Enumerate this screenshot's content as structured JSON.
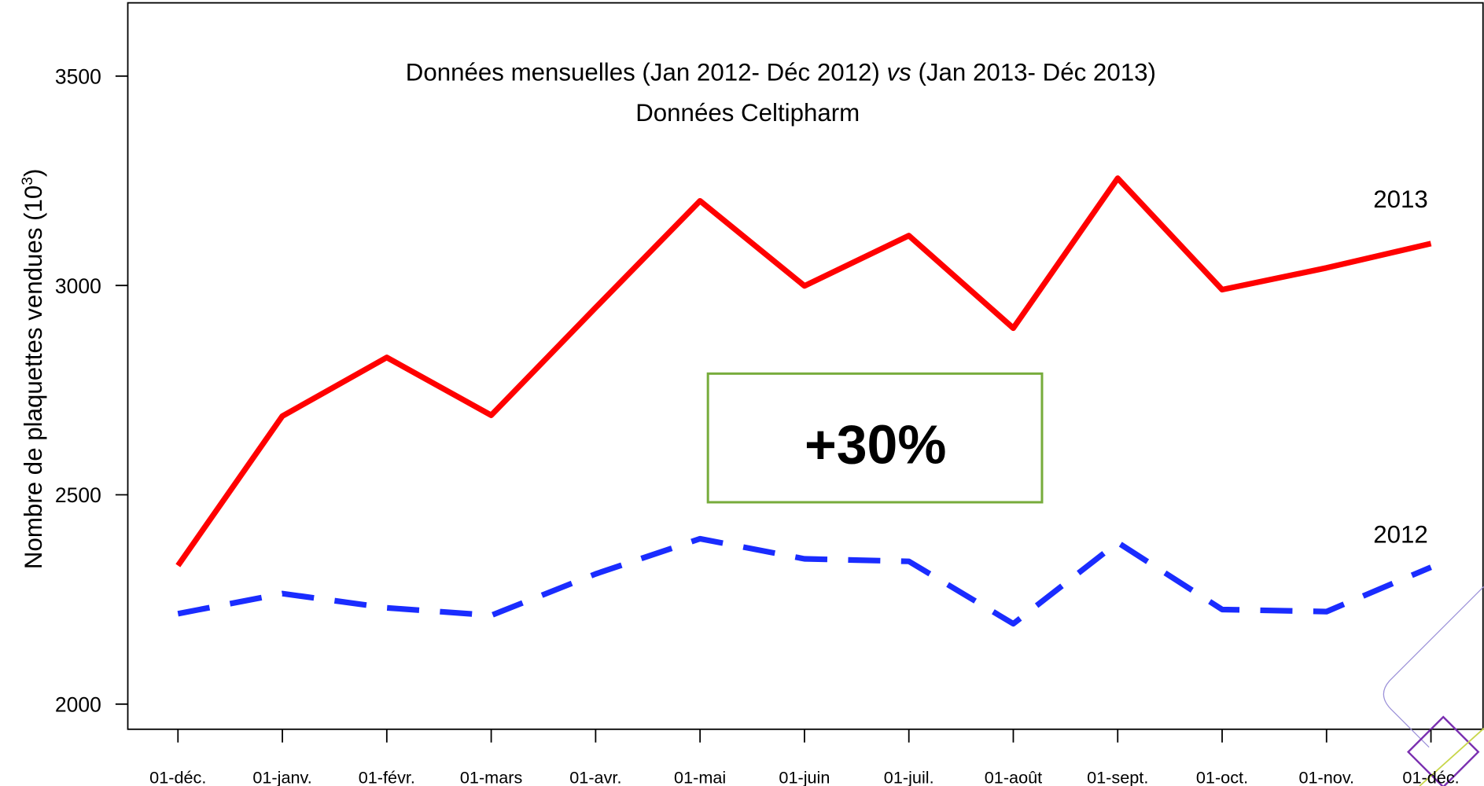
{
  "chart_data": {
    "type": "line",
    "title_parts": [
      "Données mensuelles (Jan 2012- Déc 2012) ",
      "vs",
      " (Jan 2013- Déc 2013)"
    ],
    "subtitle": "Données Celtipharm",
    "y_label_parts": [
      "Nombre de plaquettes vendues (10",
      "3",
      ")"
    ],
    "categories": [
      "01-déc.",
      "01-janv.",
      "01-févr.",
      "01-mars",
      "01-avr.",
      "01-mai",
      "01-juin",
      "01-juil.",
      "01-août",
      "01-sept.",
      "01-oct.",
      "01-nov.",
      "01-déc."
    ],
    "series": [
      {
        "name": "2013",
        "color": "#ff0000",
        "dashed": false,
        "values": [
          2331,
          2688,
          2828,
          2690,
          2947,
          3202,
          2999,
          3119,
          2898,
          3256,
          2990,
          3042,
          3100
        ]
      },
      {
        "name": "2012",
        "color": "#1a2cff",
        "dashed": true,
        "values": [
          2216,
          2264,
          2230,
          2212,
          2311,
          2395,
          2347,
          2341,
          2192,
          2386,
          2226,
          2221,
          2327
        ]
      }
    ],
    "annotation": "+30%",
    "annotation_color": "#77ac3c",
    "ylim": [
      1940,
      3675
    ],
    "yticks": [
      2000,
      2500,
      3000,
      3500
    ]
  }
}
